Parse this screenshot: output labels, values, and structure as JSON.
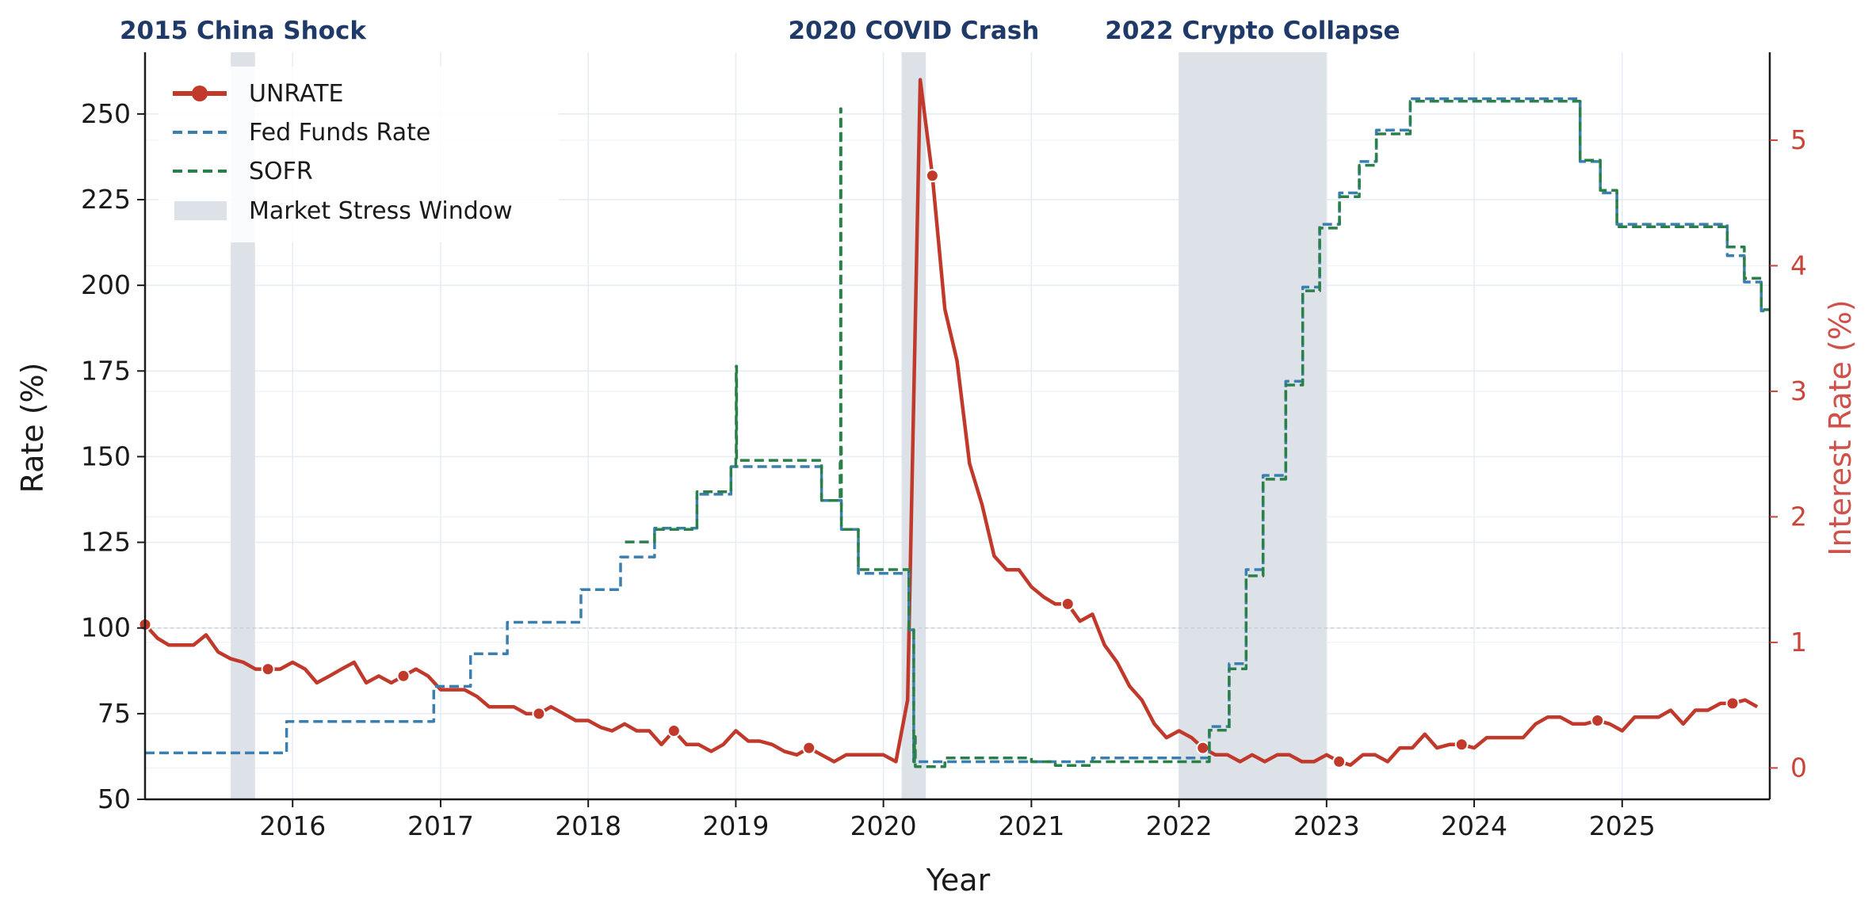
{
  "chart_data": {
    "type": "line",
    "xlabel": "Year",
    "ylabel_left": "Rate  (%)",
    "ylabel_right": "Interest Rate  (%)",
    "x_range": [
      "2015-01-01",
      "2026-01-01"
    ],
    "x_ticks": [
      "2016",
      "2017",
      "2018",
      "2019",
      "2020",
      "2021",
      "2022",
      "2023",
      "2024",
      "2025"
    ],
    "ylim_left": [
      50,
      268
    ],
    "ylim_right": [
      -0.25,
      5.7
    ],
    "y_ticks_left": [
      "50",
      "75",
      "100",
      "125",
      "150",
      "175",
      "200",
      "225",
      "250"
    ],
    "y_ticks_right": [
      "0",
      "1",
      "2",
      "3",
      "4",
      "5"
    ],
    "reference_line": 100,
    "grid": true,
    "legend_position": "upper-left",
    "colors": {
      "unrate": "#c0392b",
      "fed_funds": "#3a7fb0",
      "sofr": "#2a8048",
      "stress": "#dde2e9",
      "event_label": "#1f3a68",
      "right_axis": "#c9453a"
    },
    "shaded_windows": [
      {
        "label": "2015 China Shock",
        "start": "2015-08-01",
        "end": "2015-09-30"
      },
      {
        "label": "2020 COVID Crash",
        "start": "2020-02-15",
        "end": "2020-04-15"
      },
      {
        "label": "2022 Crypto Collapse",
        "start": "2022-01-01",
        "end": "2022-12-31"
      }
    ],
    "series": [
      {
        "name": "UNRATE",
        "axis": "left",
        "style": "solid-with-markers",
        "points": [
          [
            "2015-01-01",
            101
          ],
          [
            "2015-02-01",
            97
          ],
          [
            "2015-03-01",
            95
          ],
          [
            "2015-04-01",
            95
          ],
          [
            "2015-05-01",
            95
          ],
          [
            "2015-06-01",
            98
          ],
          [
            "2015-07-01",
            93
          ],
          [
            "2015-08-01",
            91
          ],
          [
            "2015-09-01",
            90
          ],
          [
            "2015-10-01",
            88
          ],
          [
            "2015-11-01",
            88
          ],
          [
            "2015-12-01",
            88
          ],
          [
            "2016-01-01",
            90
          ],
          [
            "2016-02-01",
            88
          ],
          [
            "2016-03-01",
            84
          ],
          [
            "2016-04-01",
            86
          ],
          [
            "2016-05-01",
            88
          ],
          [
            "2016-06-01",
            90
          ],
          [
            "2016-07-01",
            84
          ],
          [
            "2016-08-01",
            86
          ],
          [
            "2016-09-01",
            84
          ],
          [
            "2016-10-01",
            86
          ],
          [
            "2016-11-01",
            88
          ],
          [
            "2016-12-01",
            86
          ],
          [
            "2017-01-01",
            82
          ],
          [
            "2017-02-01",
            82
          ],
          [
            "2017-03-01",
            82
          ],
          [
            "2017-04-01",
            80
          ],
          [
            "2017-05-01",
            77
          ],
          [
            "2017-06-01",
            77
          ],
          [
            "2017-07-01",
            77
          ],
          [
            "2017-08-01",
            75
          ],
          [
            "2017-09-01",
            75
          ],
          [
            "2017-10-01",
            77
          ],
          [
            "2017-11-01",
            75
          ],
          [
            "2017-12-01",
            73
          ],
          [
            "2018-01-01",
            73
          ],
          [
            "2018-02-01",
            71
          ],
          [
            "2018-03-01",
            70
          ],
          [
            "2018-04-01",
            72
          ],
          [
            "2018-05-01",
            70
          ],
          [
            "2018-06-01",
            70
          ],
          [
            "2018-07-01",
            66
          ],
          [
            "2018-08-01",
            70
          ],
          [
            "2018-09-01",
            66
          ],
          [
            "2018-10-01",
            66
          ],
          [
            "2018-11-01",
            64
          ],
          [
            "2018-12-01",
            66
          ],
          [
            "2019-01-01",
            70
          ],
          [
            "2019-02-01",
            67
          ],
          [
            "2019-03-01",
            67
          ],
          [
            "2019-04-01",
            66
          ],
          [
            "2019-05-01",
            64
          ],
          [
            "2019-06-01",
            63
          ],
          [
            "2019-07-01",
            65
          ],
          [
            "2019-08-01",
            63
          ],
          [
            "2019-09-01",
            61
          ],
          [
            "2019-10-01",
            63
          ],
          [
            "2019-11-01",
            63
          ],
          [
            "2019-12-01",
            63
          ],
          [
            "2020-01-01",
            63
          ],
          [
            "2020-02-01",
            61
          ],
          [
            "2020-03-01",
            79
          ],
          [
            "2020-04-01",
            260
          ],
          [
            "2020-05-01",
            232
          ],
          [
            "2020-06-01",
            193
          ],
          [
            "2020-07-01",
            178
          ],
          [
            "2020-08-01",
            148
          ],
          [
            "2020-09-01",
            136
          ],
          [
            "2020-10-01",
            121
          ],
          [
            "2020-11-01",
            117
          ],
          [
            "2020-12-01",
            117
          ],
          [
            "2021-01-01",
            112
          ],
          [
            "2021-02-01",
            109
          ],
          [
            "2021-03-01",
            107
          ],
          [
            "2021-04-01",
            107
          ],
          [
            "2021-05-01",
            102
          ],
          [
            "2021-06-01",
            104
          ],
          [
            "2021-07-01",
            95
          ],
          [
            "2021-08-01",
            90
          ],
          [
            "2021-09-01",
            83
          ],
          [
            "2021-10-01",
            79
          ],
          [
            "2021-11-01",
            72
          ],
          [
            "2021-12-01",
            68
          ],
          [
            "2022-01-01",
            70
          ],
          [
            "2022-02-01",
            68
          ],
          [
            "2022-03-01",
            65
          ],
          [
            "2022-04-01",
            63
          ],
          [
            "2022-05-01",
            63
          ],
          [
            "2022-06-01",
            61
          ],
          [
            "2022-07-01",
            63
          ],
          [
            "2022-08-01",
            61
          ],
          [
            "2022-09-01",
            63
          ],
          [
            "2022-10-01",
            63
          ],
          [
            "2022-11-01",
            61
          ],
          [
            "2022-12-01",
            61
          ],
          [
            "2023-01-01",
            63
          ],
          [
            "2023-02-01",
            61
          ],
          [
            "2023-03-01",
            60
          ],
          [
            "2023-04-01",
            63
          ],
          [
            "2023-05-01",
            63
          ],
          [
            "2023-06-01",
            61
          ],
          [
            "2023-07-01",
            65
          ],
          [
            "2023-08-01",
            65
          ],
          [
            "2023-09-01",
            69
          ],
          [
            "2023-10-01",
            65
          ],
          [
            "2023-11-01",
            66
          ],
          [
            "2023-12-01",
            66
          ],
          [
            "2024-01-01",
            65
          ],
          [
            "2024-02-01",
            68
          ],
          [
            "2024-03-01",
            68
          ],
          [
            "2024-04-01",
            68
          ],
          [
            "2024-05-01",
            68
          ],
          [
            "2024-06-01",
            72
          ],
          [
            "2024-07-01",
            74
          ],
          [
            "2024-08-01",
            74
          ],
          [
            "2024-09-01",
            72
          ],
          [
            "2024-10-01",
            72
          ],
          [
            "2024-11-01",
            73
          ],
          [
            "2024-12-01",
            72
          ],
          [
            "2025-01-01",
            70
          ],
          [
            "2025-02-01",
            74
          ],
          [
            "2025-03-01",
            74
          ],
          [
            "2025-04-01",
            74
          ],
          [
            "2025-05-01",
            76
          ],
          [
            "2025-06-01",
            72
          ],
          [
            "2025-07-01",
            76
          ],
          [
            "2025-08-01",
            76
          ],
          [
            "2025-09-01",
            78
          ],
          [
            "2025-10-01",
            78
          ],
          [
            "2025-11-01",
            79
          ],
          [
            "2025-12-01",
            77
          ]
        ],
        "marker_dates": [
          "2015-01-01",
          "2015-11-01",
          "2016-10-01",
          "2017-09-01",
          "2018-08-01",
          "2019-07-01",
          "2020-05-01",
          "2021-04-01",
          "2022-03-01",
          "2023-02-01",
          "2023-12-01",
          "2024-11-01",
          "2025-10-01"
        ]
      },
      {
        "name": "Fed Funds Rate",
        "axis": "right",
        "style": "dashed-step",
        "points": [
          [
            "2015-01-01",
            0.12
          ],
          [
            "2015-12-17",
            0.37
          ],
          [
            "2016-12-15",
            0.65
          ],
          [
            "2017-03-16",
            0.91
          ],
          [
            "2017-06-15",
            1.16
          ],
          [
            "2017-12-14",
            1.42
          ],
          [
            "2018-03-22",
            1.68
          ],
          [
            "2018-06-14",
            1.91
          ],
          [
            "2018-09-27",
            2.18
          ],
          [
            "2018-12-20",
            2.4
          ],
          [
            "2019-08-01",
            2.13
          ],
          [
            "2019-09-19",
            1.9
          ],
          [
            "2019-10-31",
            1.55
          ],
          [
            "2020-03-04",
            1.1
          ],
          [
            "2020-03-16",
            0.05
          ],
          [
            "2021-06-01",
            0.08
          ],
          [
            "2022-03-17",
            0.33
          ],
          [
            "2022-05-05",
            0.83
          ],
          [
            "2022-06-16",
            1.58
          ],
          [
            "2022-07-28",
            2.33
          ],
          [
            "2022-09-22",
            3.08
          ],
          [
            "2022-11-03",
            3.83
          ],
          [
            "2022-12-15",
            4.33
          ],
          [
            "2023-02-02",
            4.58
          ],
          [
            "2023-03-23",
            4.83
          ],
          [
            "2023-05-04",
            5.08
          ],
          [
            "2023-07-27",
            5.33
          ],
          [
            "2024-09-19",
            4.83
          ],
          [
            "2024-11-08",
            4.58
          ],
          [
            "2024-12-19",
            4.33
          ],
          [
            "2025-09-18",
            4.08
          ],
          [
            "2025-10-30",
            3.87
          ],
          [
            "2025-12-11",
            3.64
          ],
          [
            "2025-12-31",
            3.64
          ]
        ]
      },
      {
        "name": "SOFR",
        "axis": "right",
        "style": "dashed-step",
        "points": [
          [
            "2018-04-02",
            1.8
          ],
          [
            "2018-06-14",
            1.9
          ],
          [
            "2018-09-27",
            2.2
          ],
          [
            "2018-12-20",
            2.4
          ],
          [
            "2019-01-01",
            2.5
          ],
          [
            "2019-01-02",
            3.2
          ],
          [
            "2019-01-03",
            2.45
          ],
          [
            "2019-04-01",
            2.45
          ],
          [
            "2019-08-01",
            2.13
          ],
          [
            "2019-09-16",
            2.43
          ],
          [
            "2019-09-17",
            5.25
          ],
          [
            "2019-09-18",
            2.55
          ],
          [
            "2019-09-19",
            1.9
          ],
          [
            "2019-10-31",
            1.58
          ],
          [
            "2020-03-04",
            1.1
          ],
          [
            "2020-03-16",
            0.05
          ],
          [
            "2020-03-18",
            0.25
          ],
          [
            "2020-03-20",
            0.01
          ],
          [
            "2020-06-01",
            0.08
          ],
          [
            "2021-01-01",
            0.05
          ],
          [
            "2021-03-01",
            0.02
          ],
          [
            "2021-06-01",
            0.05
          ],
          [
            "2022-03-17",
            0.3
          ],
          [
            "2022-05-05",
            0.79
          ],
          [
            "2022-06-16",
            1.53
          ],
          [
            "2022-07-28",
            2.3
          ],
          [
            "2022-09-22",
            3.05
          ],
          [
            "2022-11-03",
            3.8
          ],
          [
            "2022-12-15",
            4.3
          ],
          [
            "2023-02-02",
            4.55
          ],
          [
            "2023-03-23",
            4.8
          ],
          [
            "2023-05-04",
            5.05
          ],
          [
            "2023-07-27",
            5.31
          ],
          [
            "2024-09-19",
            4.84
          ],
          [
            "2024-11-08",
            4.6
          ],
          [
            "2024-12-19",
            4.31
          ],
          [
            "2025-09-18",
            4.15
          ],
          [
            "2025-10-30",
            3.9
          ],
          [
            "2025-12-11",
            3.65
          ],
          [
            "2025-12-31",
            3.65
          ]
        ]
      }
    ],
    "legend": [
      "UNRATE",
      "Fed Funds Rate",
      "SOFR",
      "Market Stress Window"
    ]
  }
}
